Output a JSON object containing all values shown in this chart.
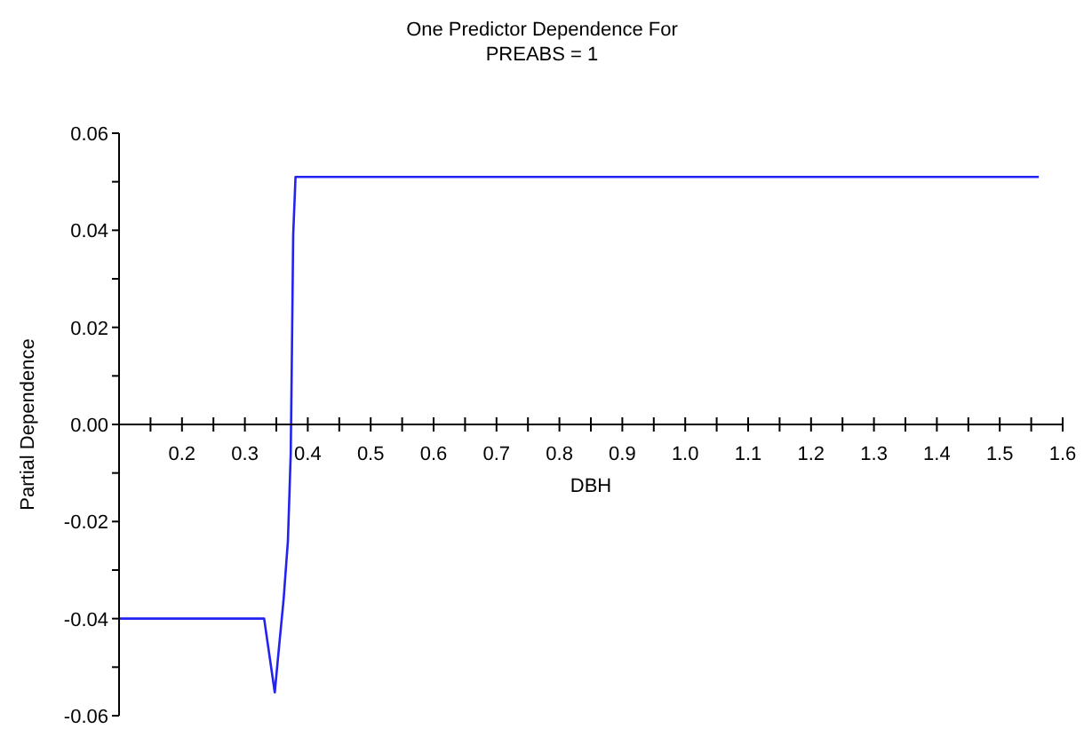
{
  "chart_data": {
    "type": "line",
    "title": "One Predictor Dependence For\nPREABS = 1",
    "xlabel": "DBH",
    "ylabel": "Partial Dependence",
    "series": [
      {
        "color": "#2323f0",
        "x": [
          0.1,
          0.3306,
          0.3475,
          0.3542,
          0.3616,
          0.3684,
          0.3729,
          0.3748,
          0.3768,
          0.3805,
          1.562
        ],
        "values": [
          -0.04,
          -0.04,
          -0.0552,
          -0.046,
          -0.036,
          -0.024,
          -0.006,
          0.015,
          0.039,
          0.051,
          0.051
        ]
      }
    ],
    "xlim": [
      0.1,
      1.6
    ],
    "xticks": [
      {
        "value": 0.15,
        "label": null
      },
      {
        "value": 0.2,
        "label": "0.2"
      },
      {
        "value": 0.25,
        "label": null
      },
      {
        "value": 0.3,
        "label": "0.3"
      },
      {
        "value": 0.35,
        "label": null
      },
      {
        "value": 0.4,
        "label": "0.4"
      },
      {
        "value": 0.45,
        "label": null
      },
      {
        "value": 0.5,
        "label": "0.5"
      },
      {
        "value": 0.55,
        "label": null
      },
      {
        "value": 0.6,
        "label": "0.6"
      },
      {
        "value": 0.65,
        "label": null
      },
      {
        "value": 0.7,
        "label": "0.7"
      },
      {
        "value": 0.75,
        "label": null
      },
      {
        "value": 0.8,
        "label": "0.8"
      },
      {
        "value": 0.85,
        "label": null
      },
      {
        "value": 0.9,
        "label": "0.9"
      },
      {
        "value": 0.95,
        "label": null
      },
      {
        "value": 1.0,
        "label": "1.0"
      },
      {
        "value": 1.05,
        "label": null
      },
      {
        "value": 1.1,
        "label": "1.1"
      },
      {
        "value": 1.15,
        "label": null
      },
      {
        "value": 1.2,
        "label": "1.2"
      },
      {
        "value": 1.25,
        "label": null
      },
      {
        "value": 1.3,
        "label": "1.3"
      },
      {
        "value": 1.35,
        "label": null
      },
      {
        "value": 1.4,
        "label": "1.4"
      },
      {
        "value": 1.45,
        "label": null
      },
      {
        "value": 1.5,
        "label": "1.5"
      },
      {
        "value": 1.55,
        "label": null
      },
      {
        "value": 1.6,
        "label": "1.6"
      }
    ],
    "ylim": [
      -0.06,
      0.06
    ],
    "yticks": [
      {
        "value": -0.06,
        "label": "-0.06"
      },
      {
        "value": -0.05,
        "label": null
      },
      {
        "value": -0.04,
        "label": "-0.04"
      },
      {
        "value": -0.03,
        "label": null
      },
      {
        "value": -0.02,
        "label": "-0.02"
      },
      {
        "value": -0.01,
        "label": null
      },
      {
        "value": 0,
        "label": "0.00"
      },
      {
        "value": 0.01,
        "label": null
      },
      {
        "value": 0.02,
        "label": "0.02"
      },
      {
        "value": 0.03,
        "label": null
      },
      {
        "value": 0.04,
        "label": "0.04"
      },
      {
        "value": 0.05,
        "label": null
      },
      {
        "value": 0.06,
        "label": "0.06"
      }
    ],
    "grid": false,
    "legend": false
  }
}
